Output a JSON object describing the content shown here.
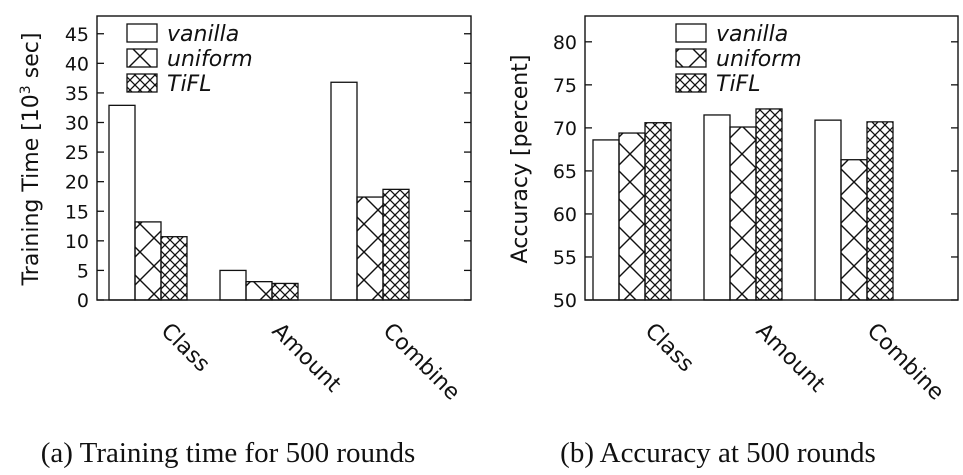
{
  "chart_data": [
    {
      "type": "bar",
      "categories": [
        "Class",
        "Amount",
        "Combine"
      ],
      "series": [
        {
          "name": "vanilla",
          "values": [
            32.9,
            5.0,
            36.8
          ],
          "pattern": "empty"
        },
        {
          "name": "uniform",
          "values": [
            13.2,
            3.1,
            17.4
          ],
          "pattern": "cross"
        },
        {
          "name": "TiFL",
          "values": [
            10.7,
            2.8,
            18.7
          ],
          "pattern": "crosshatch"
        }
      ],
      "ylabel_main": "Training Time [10",
      "ylabel_sup": "3",
      "ylabel_tail": " sec]",
      "ylim": [
        0,
        48
      ],
      "yticks": [
        0,
        5,
        10,
        15,
        20,
        25,
        30,
        35,
        40,
        45
      ],
      "caption": "(a) Training time for 500 rounds",
      "legend_position": "top-left"
    },
    {
      "type": "bar",
      "categories": [
        "Class",
        "Amount",
        "Combine"
      ],
      "series": [
        {
          "name": "vanilla",
          "values": [
            68.6,
            71.5,
            70.9
          ],
          "pattern": "empty"
        },
        {
          "name": "uniform",
          "values": [
            69.4,
            70.1,
            66.3
          ],
          "pattern": "cross"
        },
        {
          "name": "TiFL",
          "values": [
            70.6,
            72.2,
            70.7
          ],
          "pattern": "crosshatch"
        }
      ],
      "ylabel": "Accuracy [percent]",
      "ylim": [
        50,
        83
      ],
      "yticks": [
        50,
        55,
        60,
        65,
        70,
        75,
        80
      ],
      "caption": "(b) Accuracy at 500 rounds",
      "legend_position": "top-center"
    }
  ]
}
